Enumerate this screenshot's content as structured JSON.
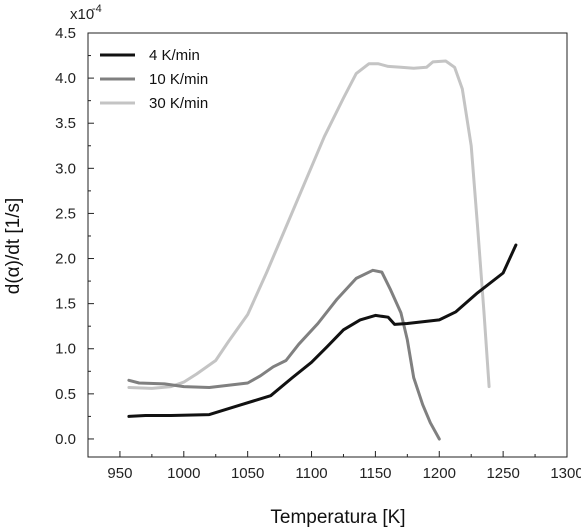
{
  "chart_data": {
    "type": "line",
    "title": "",
    "xlabel": "Temperatura [K]",
    "ylabel": "d(α)/dt [1/s]",
    "y_multiplier_base": "x10",
    "y_multiplier_exp": "-4",
    "xlim": [
      925,
      1300
    ],
    "ylim": [
      -0.2,
      4.5
    ],
    "x_ticks": [
      950,
      1000,
      1050,
      1100,
      1150,
      1200,
      1250,
      1300
    ],
    "x_tick_labels": [
      "950",
      "1000",
      "1050",
      "1100",
      "1150",
      "1200",
      "1250",
      "1300"
    ],
    "y_ticks": [
      0.0,
      0.5,
      1.0,
      1.5,
      2.0,
      2.5,
      3.0,
      3.5,
      4.0,
      4.5
    ],
    "y_tick_labels": [
      "0.0",
      "0.5",
      "1.0",
      "1.5",
      "2.0",
      "2.5",
      "3.0",
      "3.5",
      "4.0",
      "4.5"
    ],
    "grid": false,
    "legend_position": "top-left",
    "series": [
      {
        "name": "4 K/min",
        "color": "#111111",
        "x": [
          957,
          970,
          990,
          1020,
          1045,
          1068,
          1085,
          1100,
          1112,
          1125,
          1138,
          1150,
          1160,
          1165,
          1175,
          1200,
          1213,
          1230,
          1250,
          1260
        ],
        "y": [
          0.25,
          0.26,
          0.26,
          0.27,
          0.38,
          0.48,
          0.68,
          0.85,
          1.02,
          1.21,
          1.32,
          1.37,
          1.35,
          1.27,
          1.28,
          1.32,
          1.41,
          1.62,
          1.84,
          2.15
        ]
      },
      {
        "name": "10 K/min",
        "color": "#808080",
        "x": [
          957,
          965,
          985,
          1000,
          1020,
          1050,
          1060,
          1070,
          1080,
          1090,
          1105,
          1120,
          1135,
          1148,
          1155,
          1162,
          1170,
          1175,
          1180,
          1187,
          1193,
          1200
        ],
        "y": [
          0.65,
          0.62,
          0.61,
          0.58,
          0.57,
          0.62,
          0.7,
          0.8,
          0.87,
          1.05,
          1.28,
          1.55,
          1.78,
          1.87,
          1.85,
          1.65,
          1.4,
          1.1,
          0.68,
          0.38,
          0.18,
          0.0
        ]
      },
      {
        "name": "30 K/min",
        "color": "#c4c4c4",
        "x": [
          957,
          975,
          990,
          1000,
          1010,
          1025,
          1035,
          1050,
          1065,
          1080,
          1095,
          1110,
          1125,
          1135,
          1145,
          1152,
          1160,
          1170,
          1180,
          1190,
          1195,
          1205,
          1212,
          1218,
          1225,
          1230,
          1235,
          1239
        ],
        "y": [
          0.57,
          0.56,
          0.58,
          0.63,
          0.72,
          0.87,
          1.08,
          1.38,
          1.85,
          2.35,
          2.85,
          3.35,
          3.78,
          4.05,
          4.16,
          4.16,
          4.13,
          4.12,
          4.11,
          4.12,
          4.18,
          4.19,
          4.12,
          3.88,
          3.25,
          2.35,
          1.4,
          0.58
        ]
      }
    ]
  }
}
